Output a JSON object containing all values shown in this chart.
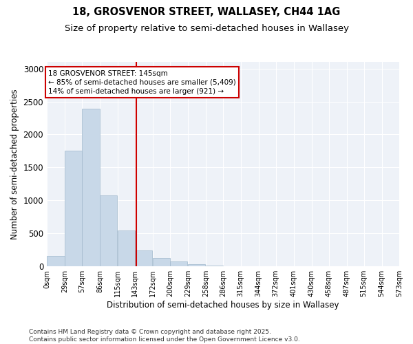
{
  "title_line1": "18, GROSVENOR STREET, WALLASEY, CH44 1AG",
  "title_line2": "Size of property relative to semi-detached houses in Wallasey",
  "xlabel": "Distribution of semi-detached houses by size in Wallasey",
  "ylabel": "Number of semi-detached properties",
  "bar_left_edges": [
    0,
    29,
    57,
    86,
    115,
    143,
    172,
    200,
    229,
    258,
    286,
    315,
    344,
    372,
    401,
    430,
    458,
    487,
    515,
    544
  ],
  "bar_width": 28.5,
  "bar_heights": [
    160,
    1750,
    2390,
    1080,
    540,
    240,
    130,
    80,
    30,
    10,
    0,
    0,
    0,
    0,
    0,
    0,
    0,
    0,
    0,
    0
  ],
  "bar_color": "#c8d8e8",
  "bar_edgecolor": "#a0b8cc",
  "vline_x": 145,
  "vline_color": "#cc0000",
  "annotation_text": "18 GROSVENOR STREET: 145sqm\n← 85% of semi-detached houses are smaller (5,409)\n14% of semi-detached houses are larger (921) →",
  "annotation_box_color": "#cc0000",
  "tick_labels": [
    "0sqm",
    "29sqm",
    "57sqm",
    "86sqm",
    "115sqm",
    "143sqm",
    "172sqm",
    "200sqm",
    "229sqm",
    "258sqm",
    "286sqm",
    "315sqm",
    "344sqm",
    "372sqm",
    "401sqm",
    "430sqm",
    "458sqm",
    "487sqm",
    "515sqm",
    "544sqm",
    "573sqm"
  ],
  "ylim": [
    0,
    3100
  ],
  "yticks": [
    0,
    500,
    1000,
    1500,
    2000,
    2500,
    3000
  ],
  "background_color": "#ffffff",
  "plot_bg_color": "#eef2f8",
  "grid_color": "#ffffff",
  "footer_text": "Contains HM Land Registry data © Crown copyright and database right 2025.\nContains public sector information licensed under the Open Government Licence v3.0.",
  "title_fontsize": 10.5,
  "subtitle_fontsize": 9.5,
  "axis_label_fontsize": 8.5,
  "tick_fontsize": 7,
  "footer_fontsize": 6.5,
  "annotation_fontsize": 7.5
}
